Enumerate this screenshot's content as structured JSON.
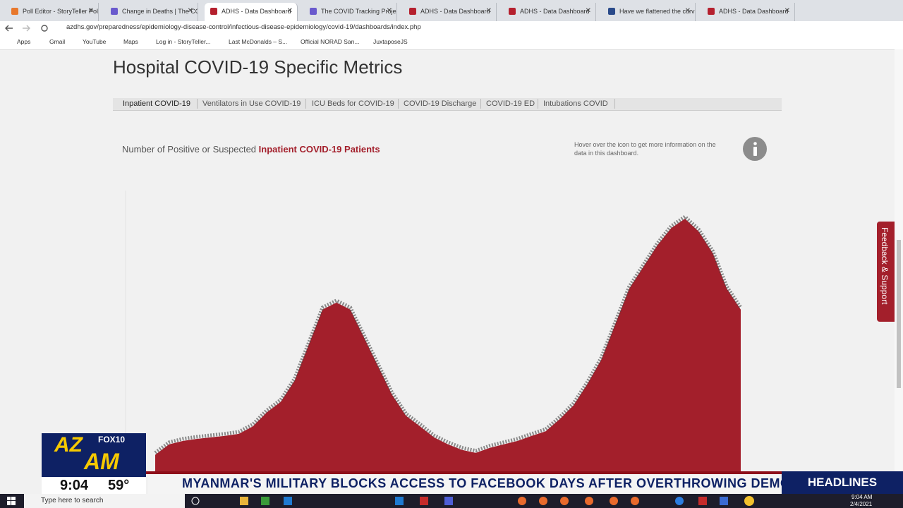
{
  "browser": {
    "tabs": [
      "Poll Editor - StoryTeller Poll",
      "Change in Deaths | The CO",
      "ADHS - Data Dashboard",
      "The COVID Tracking Project",
      "ADHS - Data Dashboard",
      "ADHS - Data Dashboard",
      "Have we flattened the curv",
      "ADHS - Data Dashboard"
    ],
    "url": "azdhs.gov/preparedness/epidemiology-disease-control/infectious-disease-epidemiology/covid-19/dashboards/index.php",
    "bookmarks": [
      "Apps",
      "Gmail",
      "YouTube",
      "Maps",
      "Log in - StoryTeller...",
      "Last McDonalds – S...",
      "Official NORAD San...",
      "JuxtaposeJS"
    ]
  },
  "page": {
    "heading": "Hospital COVID-19 Specific Metrics",
    "tabs": [
      "Inpatient COVID-19",
      "Ventilators in Use COVID-19",
      "ICU Beds for COVID-19",
      "COVID-19 Discharge",
      "COVID-19 ED",
      "Intubations COVID"
    ],
    "subtitle_prefix": "Number of Positive or Suspected",
    "subtitle_highlight": "Inpatient COVID-19 Patients",
    "info": "Hover over the icon to get more information on the data in this dashboard.",
    "feedback": "Feedback & Support"
  },
  "chart_data": {
    "type": "area",
    "color": "#a31f2b",
    "values": [
      330,
      540,
      610,
      650,
      680,
      710,
      750,
      900,
      1180,
      1390,
      1820,
      2530,
      3240,
      3380,
      3240,
      2670,
      2100,
      1530,
      1110,
      900,
      680,
      540,
      430,
      370,
      470,
      540,
      610,
      710,
      800,
      1040,
      1320,
      1750,
      2240,
      2950,
      3660,
      4090,
      4520,
      4870,
      5060,
      4800,
      4370,
      3660,
      3240
    ]
  },
  "overlay": {
    "logo_top": "AZ",
    "logo_bottom": "AM",
    "station": "FOX10",
    "time": "9:04",
    "temperature": "59°",
    "ticker": "MYANMAR'S MILITARY BLOCKS ACCESS TO FACEBOOK DAYS AFTER OVERTHROWING DEMOCR",
    "segment": "HEADLINES"
  },
  "taskbar": {
    "search": "Type here to search",
    "time": "9:04 AM",
    "date": "2/4/2021"
  }
}
